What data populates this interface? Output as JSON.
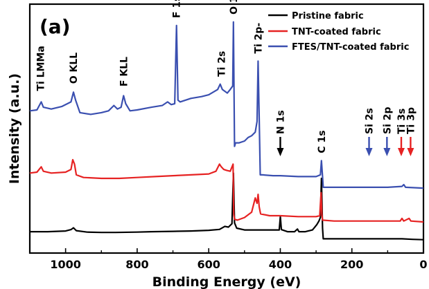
{
  "chart_data": {
    "type": "line",
    "panel_label": "(a)",
    "xlabel": "Binding Energy (eV)",
    "ylabel": "Intensity (a.u.)",
    "xlim": [
      1100,
      0
    ],
    "x_reversed": true,
    "x_ticks": [
      1000,
      800,
      600,
      400,
      200,
      0
    ],
    "y_ticks_labeled": false,
    "grid": false,
    "legend_position": "top-right",
    "series": [
      {
        "name": "Pristine fabric",
        "color": "#000000",
        "points": [
          [
            1100,
            2.0
          ],
          [
            1050,
            2.0
          ],
          [
            1000,
            2.4
          ],
          [
            985,
            3.2
          ],
          [
            978,
            4.2
          ],
          [
            970,
            2.6
          ],
          [
            940,
            1.8
          ],
          [
            900,
            1.6
          ],
          [
            860,
            1.6
          ],
          [
            800,
            1.8
          ],
          [
            760,
            2.0
          ],
          [
            700,
            2.2
          ],
          [
            650,
            2.4
          ],
          [
            600,
            2.8
          ],
          [
            570,
            3.3
          ],
          [
            555,
            5.0
          ],
          [
            545,
            4.6
          ],
          [
            535,
            6.5
          ],
          [
            531,
            35.0
          ],
          [
            528,
            7.0
          ],
          [
            522,
            4.0
          ],
          [
            500,
            3.0
          ],
          [
            480,
            3.0
          ],
          [
            470,
            3.0
          ],
          [
            455,
            3.0
          ],
          [
            420,
            3.0
          ],
          [
            403,
            3.0
          ],
          [
            400,
            10.5
          ],
          [
            397,
            3.2
          ],
          [
            380,
            2.0
          ],
          [
            360,
            2.0
          ],
          [
            352,
            3.5
          ],
          [
            348,
            2.0
          ],
          [
            330,
            2.0
          ],
          [
            310,
            3.0
          ],
          [
            298,
            6.0
          ],
          [
            292,
            8.0
          ],
          [
            288,
            10.0
          ],
          [
            285,
            32.0
          ],
          [
            282,
            4.0
          ],
          [
            280,
            -2.0
          ],
          [
            250,
            -2.0
          ],
          [
            200,
            -2.0
          ],
          [
            150,
            -2.0
          ],
          [
            100,
            -2.0
          ],
          [
            60,
            -2.0
          ],
          [
            30,
            -2.3
          ],
          [
            0,
            -2.5
          ]
        ]
      },
      {
        "name": "TNT-coated fabric",
        "color": "#e62222",
        "points": [
          [
            1100,
            35.0
          ],
          [
            1080,
            35.5
          ],
          [
            1068,
            38.5
          ],
          [
            1062,
            36.0
          ],
          [
            1040,
            35.0
          ],
          [
            1000,
            35.5
          ],
          [
            985,
            37.0
          ],
          [
            980,
            42.5
          ],
          [
            975,
            40.0
          ],
          [
            970,
            34.0
          ],
          [
            950,
            32.5
          ],
          [
            900,
            32.0
          ],
          [
            850,
            32.0
          ],
          [
            800,
            32.5
          ],
          [
            750,
            33.0
          ],
          [
            700,
            33.5
          ],
          [
            650,
            34.0
          ],
          [
            600,
            34.5
          ],
          [
            580,
            36.0
          ],
          [
            570,
            40.0
          ],
          [
            565,
            38.5
          ],
          [
            558,
            37.0
          ],
          [
            550,
            36.5
          ],
          [
            540,
            36.0
          ],
          [
            532,
            40.0
          ],
          [
            530,
            12.0
          ],
          [
            528,
            9.0
          ],
          [
            520,
            8.5
          ],
          [
            500,
            10.0
          ],
          [
            480,
            13.0
          ],
          [
            470,
            21.0
          ],
          [
            465,
            18.0
          ],
          [
            462,
            23.0
          ],
          [
            459,
            16.0
          ],
          [
            456,
            13.0
          ],
          [
            455,
            12.0
          ],
          [
            430,
            11.0
          ],
          [
            400,
            11.0
          ],
          [
            350,
            10.5
          ],
          [
            300,
            10.5
          ],
          [
            290,
            11.0
          ],
          [
            286,
            24.0
          ],
          [
            284,
            12.0
          ],
          [
            282,
            8.5
          ],
          [
            250,
            8.0
          ],
          [
            200,
            8.0
          ],
          [
            150,
            8.0
          ],
          [
            100,
            8.0
          ],
          [
            65,
            8.0
          ],
          [
            60,
            9.5
          ],
          [
            55,
            8.0
          ],
          [
            40,
            9.5
          ],
          [
            35,
            8.0
          ],
          [
            0,
            7.5
          ]
        ]
      },
      {
        "name": "FTES/TNT-coated fabric",
        "color": "#3a4fb0",
        "points": [
          [
            1100,
            70.0
          ],
          [
            1080,
            70.5
          ],
          [
            1068,
            75.0
          ],
          [
            1062,
            72.0
          ],
          [
            1040,
            71.0
          ],
          [
            1010,
            72.5
          ],
          [
            995,
            74.0
          ],
          [
            985,
            75.0
          ],
          [
            978,
            80.5
          ],
          [
            972,
            76.0
          ],
          [
            960,
            69.0
          ],
          [
            930,
            68.0
          ],
          [
            900,
            69.0
          ],
          [
            880,
            70.0
          ],
          [
            865,
            73.0
          ],
          [
            855,
            71.0
          ],
          [
            845,
            72.0
          ],
          [
            838,
            78.5
          ],
          [
            832,
            74.0
          ],
          [
            820,
            70.0
          ],
          [
            800,
            70.5
          ],
          [
            760,
            72.0
          ],
          [
            730,
            73.0
          ],
          [
            715,
            75.0
          ],
          [
            705,
            73.5
          ],
          [
            695,
            74.0
          ],
          [
            690,
            118.0
          ],
          [
            686,
            76.0
          ],
          [
            680,
            75.0
          ],
          [
            650,
            77.0
          ],
          [
            620,
            78.0
          ],
          [
            600,
            79.0
          ],
          [
            575,
            82.0
          ],
          [
            568,
            85.0
          ],
          [
            562,
            82.0
          ],
          [
            548,
            80.0
          ],
          [
            540,
            82.0
          ],
          [
            533,
            84.0
          ],
          [
            531,
            120.0
          ],
          [
            528,
            50.0
          ],
          [
            525,
            52.0
          ],
          [
            515,
            52.0
          ],
          [
            500,
            53.0
          ],
          [
            490,
            55.0
          ],
          [
            480,
            56.0
          ],
          [
            470,
            58.0
          ],
          [
            465,
            64.0
          ],
          [
            462,
            98.0
          ],
          [
            459,
            66.0
          ],
          [
            456,
            34.0
          ],
          [
            450,
            34.0
          ],
          [
            420,
            33.5
          ],
          [
            400,
            33.5
          ],
          [
            350,
            33.0
          ],
          [
            300,
            33.0
          ],
          [
            288,
            34.0
          ],
          [
            285,
            42.0
          ],
          [
            282,
            33.0
          ],
          [
            280,
            27.0
          ],
          [
            250,
            27.0
          ],
          [
            200,
            27.0
          ],
          [
            150,
            27.0
          ],
          [
            100,
            27.0
          ],
          [
            60,
            27.5
          ],
          [
            55,
            28.5
          ],
          [
            50,
            27.0
          ],
          [
            0,
            26.5
          ]
        ]
      }
    ],
    "annotations": [
      {
        "text": "Ti LMMa",
        "color": "#000000",
        "x": 1070,
        "y": 80.0,
        "rotated": true
      },
      {
        "text": "O KLL",
        "color": "#000000",
        "x": 978,
        "y": 84.0,
        "rotated": true
      },
      {
        "text": "F KLL",
        "color": "#000000",
        "x": 838,
        "y": 82.5,
        "rotated": true
      },
      {
        "text": "F 1s",
        "color": "#000000",
        "x": 690,
        "y": 121.0,
        "rotated": true
      },
      {
        "text": "O 1s",
        "color": "#000000",
        "x": 531,
        "y": 123.0,
        "rotated": true
      },
      {
        "text": "Ti 2s",
        "color": "#000000",
        "x": 565,
        "y": 88.0,
        "rotated": true
      },
      {
        "text": "Ti 2p-",
        "color": "#000000",
        "x": 462,
        "y": 101.0,
        "rotated": true
      },
      {
        "text": "N 1s",
        "color": "#000000",
        "x": 400,
        "y": 50.0,
        "rotated": true
      },
      {
        "text": "C 1s",
        "color": "#000000",
        "x": 285,
        "y": 45.0,
        "rotated": true
      },
      {
        "text": "Si 2s",
        "color": "#000000",
        "x": 152,
        "y": 50.0,
        "rotated": true
      },
      {
        "text": "Si 2p",
        "color": "#000000",
        "x": 102,
        "y": 50.0,
        "rotated": true
      },
      {
        "text": "Ti 3s",
        "color": "#000000",
        "x": 62,
        "y": 50.0,
        "rotated": true
      },
      {
        "text": "Ti 3p",
        "color": "#000000",
        "x": 36,
        "y": 50.0,
        "rotated": true
      }
    ],
    "arrows": [
      {
        "target": "N 1s",
        "color": "#000000",
        "x": 400
      },
      {
        "target": "Si 2s",
        "color": "#3a4fb0",
        "x": 152
      },
      {
        "target": "Si 2p",
        "color": "#3a4fb0",
        "x": 102
      },
      {
        "target": "Ti 3s",
        "color": "#e62222",
        "x": 62
      },
      {
        "target": "Ti 3p",
        "color": "#e62222",
        "x": 36
      }
    ]
  }
}
